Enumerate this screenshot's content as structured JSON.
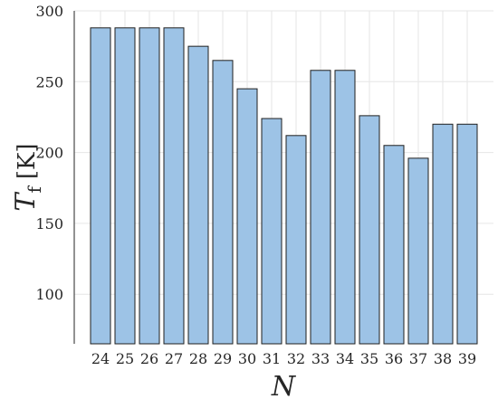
{
  "chart_data": {
    "type": "bar",
    "categories": [
      "24",
      "25",
      "26",
      "27",
      "28",
      "29",
      "30",
      "31",
      "32",
      "33",
      "34",
      "35",
      "36",
      "37",
      "38",
      "39"
    ],
    "values": [
      288,
      288,
      288,
      288,
      275,
      265,
      245,
      224,
      212,
      258,
      258,
      226,
      205,
      196,
      220,
      220
    ],
    "xlabel": "N",
    "ylabel": {
      "symbol": "T",
      "subscript": "f",
      "unit": "[K]"
    },
    "ylim": [
      65,
      300
    ],
    "yticks": [
      "100",
      "150",
      "200",
      "250",
      "300"
    ],
    "grid": true,
    "colors": {
      "bar_fill": "#9dc3e6",
      "bar_edge": "#1f1f1f",
      "grid": "#e6e6e6",
      "axis": "#262626"
    }
  }
}
